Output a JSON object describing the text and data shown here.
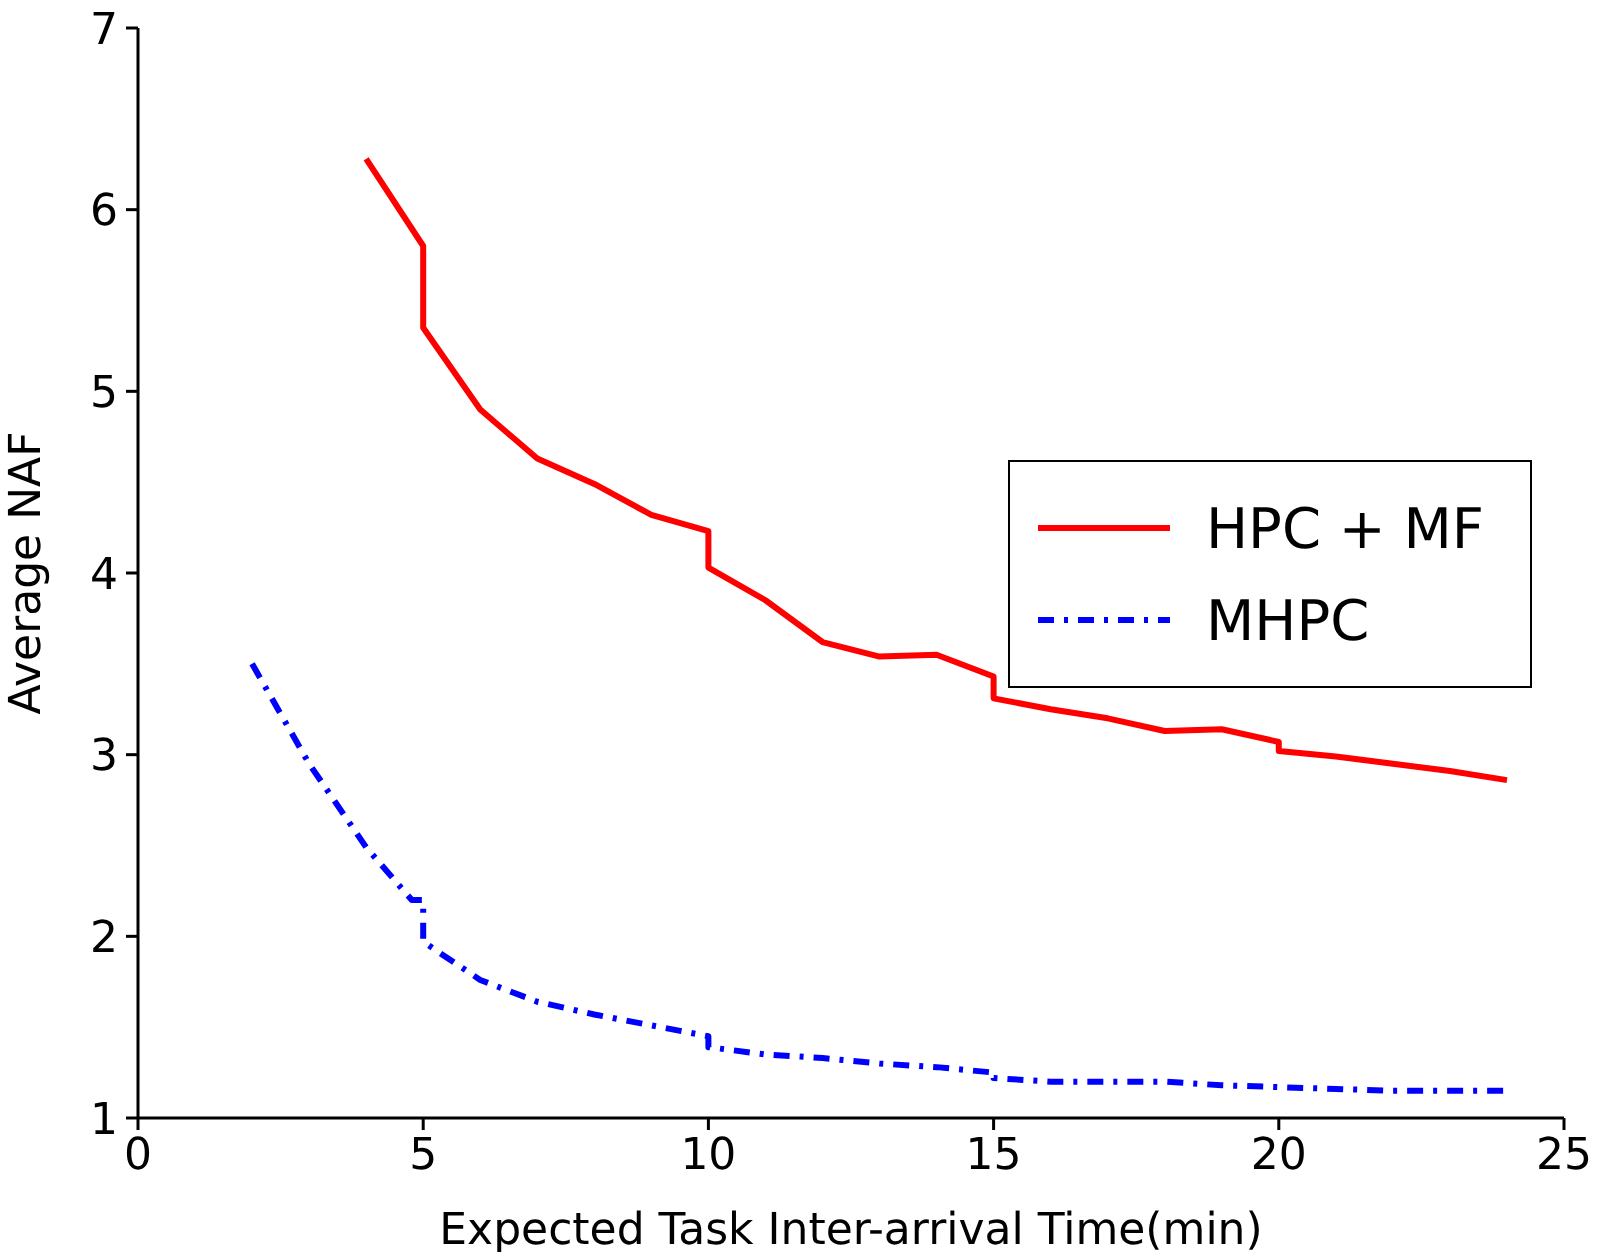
{
  "chart_data": {
    "type": "line",
    "xlabel": "Expected Task Inter-arrival Time(min)",
    "ylabel": "Average NAF",
    "xlim": [
      0,
      25
    ],
    "xticks": [
      0,
      5,
      10,
      15,
      20,
      25
    ],
    "ylim": [
      1,
      7
    ],
    "yticks": [
      1,
      2,
      3,
      4,
      5,
      6,
      7
    ],
    "grid": false,
    "legend": "right",
    "marker": "none",
    "series": [
      {
        "name": "HPC + MF",
        "color": "#ff0000",
        "line_style": "solid",
        "x": [
          4,
          5,
          5,
          6,
          7,
          8,
          9,
          10,
          10,
          11,
          12,
          13,
          14,
          15,
          15,
          16,
          17,
          18,
          19,
          20,
          20,
          21,
          22,
          23,
          24
        ],
        "values": [
          6.28,
          5.8,
          5.35,
          4.9,
          4.63,
          4.49,
          4.32,
          4.23,
          4.03,
          3.85,
          3.62,
          3.54,
          3.55,
          3.43,
          3.31,
          3.25,
          3.2,
          3.13,
          3.14,
          3.07,
          3.02,
          2.99,
          2.95,
          2.91,
          2.86
        ]
      },
      {
        "name": "MHPC",
        "color": "#0000ff",
        "line_style": "dashed",
        "x": [
          2,
          3,
          4,
          4.8,
          5,
          5,
          6,
          7,
          8,
          9,
          10,
          10,
          11,
          12,
          13,
          14,
          15,
          15,
          16,
          17,
          18,
          19,
          20,
          21,
          22,
          23,
          24
        ],
        "values": [
          3.5,
          2.95,
          2.49,
          2.2,
          2.2,
          1.97,
          1.76,
          1.64,
          1.57,
          1.51,
          1.45,
          1.39,
          1.35,
          1.33,
          1.3,
          1.28,
          1.25,
          1.22,
          1.2,
          1.2,
          1.2,
          1.18,
          1.17,
          1.16,
          1.15,
          1.15,
          1.15
        ]
      }
    ]
  }
}
